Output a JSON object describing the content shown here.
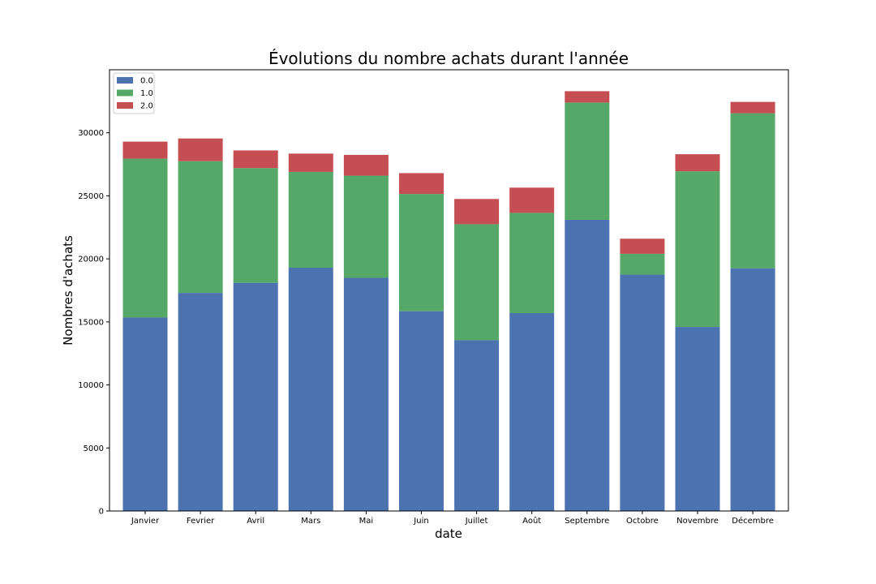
{
  "chart_data": {
    "type": "bar",
    "stacked": true,
    "title": "Évolutions du nombre achats durant l'année",
    "xlabel": "date",
    "ylabel": "Nombres d'achats",
    "categories": [
      "Janvier",
      "Fevrier",
      "Avril",
      "Mars",
      "Mai",
      "Juin",
      "Juillet",
      "Août",
      "Septembre",
      "Octobre",
      "Novembre",
      "Décembre"
    ],
    "ylim": [
      0,
      35000
    ],
    "yticks": [
      0,
      5000,
      10000,
      15000,
      20000,
      25000,
      30000
    ],
    "yticklabels": [
      "0",
      "5000",
      "10000",
      "15000",
      "20000",
      "25000",
      "30000"
    ],
    "grid": false,
    "legend_position": "top-left",
    "series": [
      {
        "name": "0.0",
        "color": "#4c72b0",
        "values": [
          15350,
          17300,
          18100,
          19300,
          18500,
          15850,
          13550,
          15700,
          23100,
          18750,
          14600,
          19250
        ]
      },
      {
        "name": "1.0",
        "color": "#55a868",
        "values": [
          12600,
          10450,
          9100,
          7600,
          8100,
          9300,
          9200,
          7950,
          9300,
          1650,
          12350,
          12300
        ]
      },
      {
        "name": "2.0",
        "color": "#c44e52",
        "values": [
          1350,
          1800,
          1400,
          1450,
          1650,
          1650,
          2000,
          2000,
          900,
          1200,
          1350,
          900
        ]
      }
    ]
  }
}
